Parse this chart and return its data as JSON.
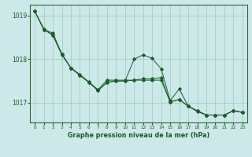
{
  "title": "Graphe pression niveau de la mer (hPa)",
  "bg_color": "#cce8e8",
  "grid_color": "#99ccbb",
  "line_color": "#1a5c2a",
  "border_color": "#336633",
  "xlim": [
    -0.5,
    23.5
  ],
  "ylim": [
    1016.55,
    1019.25
  ],
  "yticks": [
    1017,
    1018,
    1019
  ],
  "xticks": [
    0,
    1,
    2,
    3,
    4,
    5,
    6,
    7,
    8,
    9,
    10,
    11,
    12,
    13,
    14,
    15,
    16,
    17,
    18,
    19,
    20,
    21,
    22,
    23
  ],
  "series": [
    [
      1019.1,
      1018.7,
      1018.55,
      1018.1,
      1017.8,
      1017.65,
      1017.48,
      1017.3,
      1017.52,
      1017.52,
      1017.52,
      1017.52,
      1017.52,
      1017.52,
      1017.52,
      1017.02,
      1017.08,
      1016.92,
      1016.8,
      1016.72,
      1016.72,
      1016.72,
      1016.82,
      1016.78
    ],
    [
      1019.1,
      1018.68,
      1018.6,
      1018.12,
      1017.8,
      1017.63,
      1017.47,
      1017.28,
      1017.47,
      1017.5,
      1017.5,
      1018.0,
      1018.1,
      1018.02,
      1017.78,
      1017.05,
      1017.32,
      1016.92,
      1016.82,
      1016.72,
      1016.72,
      1016.72,
      1016.82,
      1016.78
    ],
    [
      1019.1,
      1018.68,
      1018.55,
      1018.12,
      1017.8,
      1017.63,
      1017.47,
      1017.28,
      1017.47,
      1017.5,
      1017.5,
      1017.52,
      1017.55,
      1017.55,
      1017.58,
      1017.02,
      1017.08,
      1016.92,
      1016.82,
      1016.72,
      1016.72,
      1016.72,
      1016.82,
      1016.78
    ]
  ]
}
